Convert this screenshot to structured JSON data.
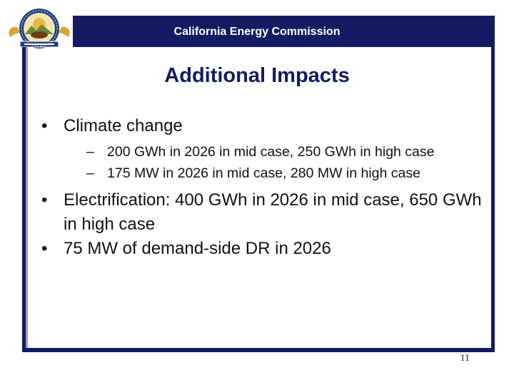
{
  "header": {
    "title": "California Energy Commission"
  },
  "logo": {
    "icon": "california-energy-commission-seal-icon",
    "ring_color": "#1d3f7a",
    "accent_color": "#d9a531"
  },
  "slide": {
    "title": "Additional Impacts",
    "bullets": [
      {
        "marker": "•",
        "text": "Climate change",
        "sub": [
          {
            "marker": "–",
            "text": "200 GWh in 2026 in mid case, 250 GWh in high case"
          },
          {
            "marker": "–",
            "text": "175 MW in 2026 in mid case, 280 MW in high case"
          }
        ]
      },
      {
        "marker": "•",
        "text": "Electrification: 400 GWh in 2026 in mid case, 650 GWh in high case"
      },
      {
        "marker": "•",
        "text": "75 MW of demand-side DR in 2026"
      }
    ],
    "page_number": "11"
  },
  "colors": {
    "navy": "#141b63",
    "text": "#111111"
  }
}
